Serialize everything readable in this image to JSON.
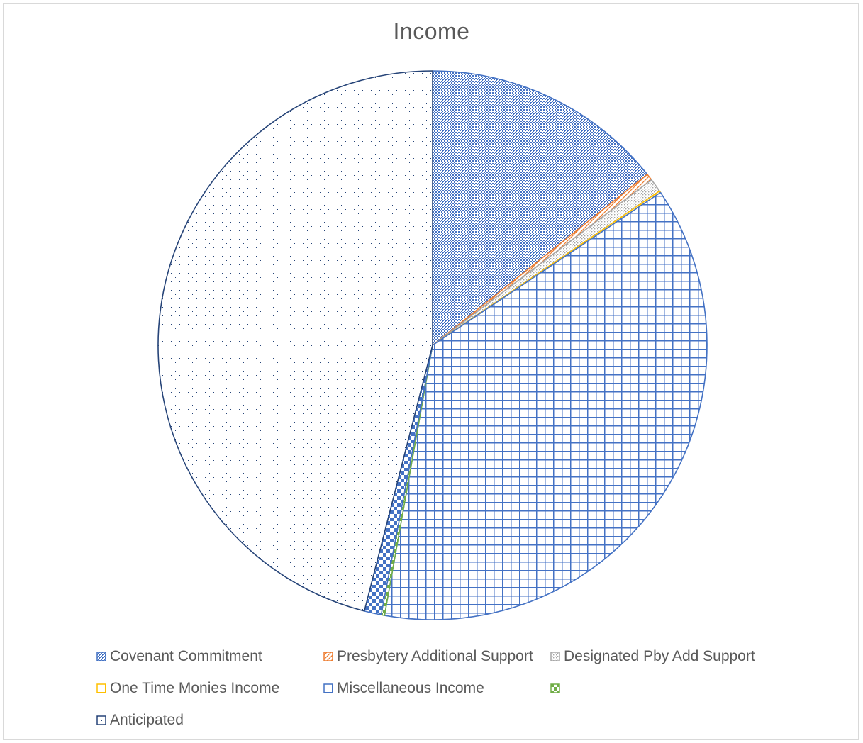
{
  "chart_data": {
    "type": "pie",
    "title": "Income",
    "slices": [
      {
        "label": "Covenant Commitment",
        "value": 14.3,
        "color": "#4472c4",
        "pattern": "crosshatch-dense"
      },
      {
        "label": "Presbytery Additional Support",
        "value": 0.4,
        "color": "#ed7d31",
        "pattern": "diagonal"
      },
      {
        "label": "Designated Pby Add Support",
        "value": 0.8,
        "color": "#a5a5a5",
        "pattern": "dotted-grid"
      },
      {
        "label": "One Time Monies Income",
        "value": 0.1,
        "color": "#ffc000",
        "pattern": "grid"
      },
      {
        "label": "Miscellaneous Income",
        "value": 37.2,
        "color": "#4472c4",
        "pattern": "grid"
      },
      {
        "label": "",
        "value": 0.2,
        "color": "#70ad47",
        "pattern": "checker"
      },
      {
        "label": "",
        "value": 1.0,
        "color": "#4472c4",
        "pattern": "checker"
      },
      {
        "label": "Anticipated",
        "value": 46.0,
        "color": "#264478",
        "pattern": "sparse-dots"
      }
    ],
    "legend": {
      "position": "bottom",
      "entries": [
        {
          "label": "Covenant Commitment",
          "color": "#4472c4",
          "pattern": "crosshatch-dense"
        },
        {
          "label": "Presbytery Additional Support",
          "color": "#ed7d31",
          "pattern": "diagonal"
        },
        {
          "label": "Designated Pby Add Support",
          "color": "#a5a5a5",
          "pattern": "dotted-grid"
        },
        {
          "label": "One Time Monies Income",
          "color": "#ffc000",
          "pattern": "grid"
        },
        {
          "label": "Miscellaneous Income",
          "color": "#4472c4",
          "pattern": "grid"
        },
        {
          "label": "",
          "color": "#70ad47",
          "pattern": "checker"
        },
        {
          "label": "Anticipated",
          "color": "#264478",
          "pattern": "sparse-dots"
        }
      ]
    }
  }
}
